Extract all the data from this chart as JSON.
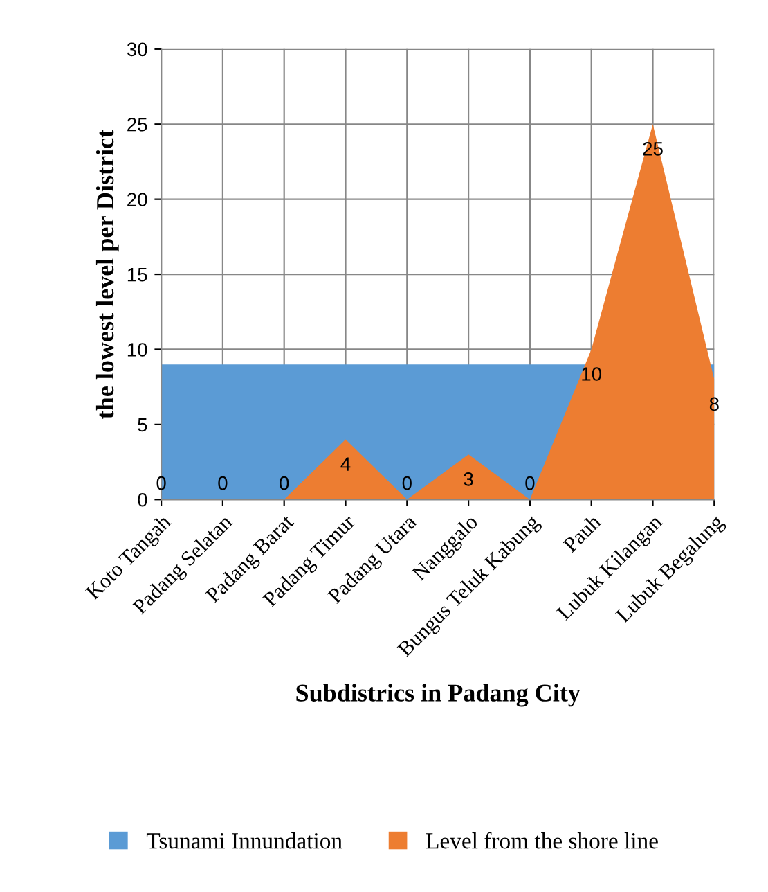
{
  "chart_data": {
    "type": "area",
    "xlabel": "Subdistrics in Padang City",
    "ylabel": "the lowest level per District",
    "categories": [
      "Koto Tangah",
      "Padang Selatan",
      "Padang Barat",
      "Padang Timur",
      "Padang Utara",
      "Nanggalo",
      "Bungus Teluk Kabung",
      "Pauh",
      "Lubuk Kilangan",
      "Lubuk Begalung"
    ],
    "series": [
      {
        "name": "Tsunami Innundation",
        "color": "#5b9bd5",
        "values": [
          9,
          9,
          9,
          9,
          9,
          9,
          9,
          null,
          null,
          9
        ]
      },
      {
        "name": "Level from the shore line",
        "color": "#ed7d31",
        "values": [
          0,
          0,
          0,
          4,
          0,
          3,
          0,
          10,
          25,
          8
        ],
        "value_labels": [
          "0",
          "0",
          "0",
          "4",
          "0",
          "3",
          "0",
          "10",
          "25",
          "8"
        ]
      }
    ],
    "ylim": [
      0,
      30
    ],
    "yticks": [
      0,
      5,
      10,
      15,
      20,
      25,
      30
    ],
    "grid": true,
    "legend": "bottom"
  }
}
